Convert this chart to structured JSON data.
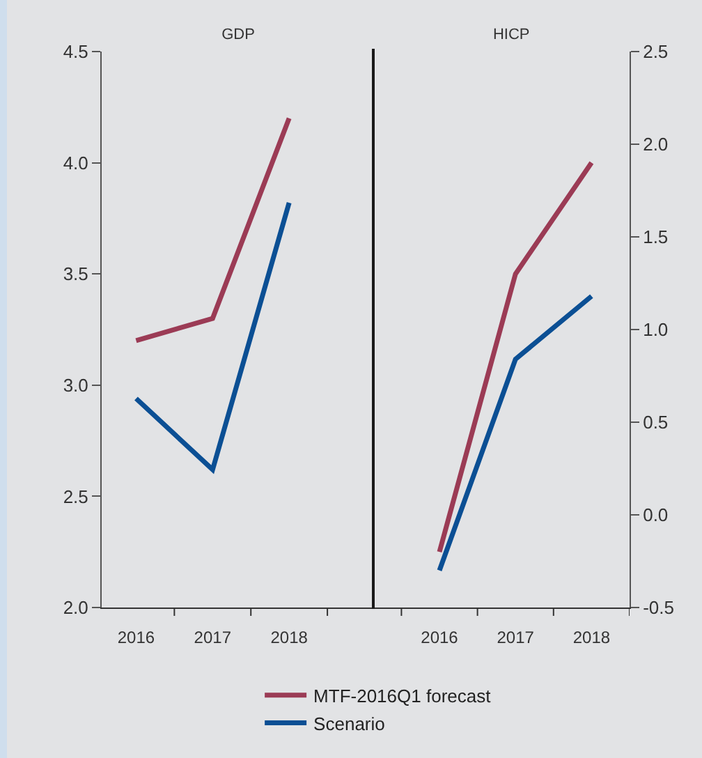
{
  "chart_data": [
    {
      "type": "line",
      "title": "GDP",
      "categories": [
        "2016",
        "2017",
        "2018"
      ],
      "ylim": [
        2.0,
        4.5
      ],
      "yticks": [
        {
          "value": 2.0,
          "label": "2.0"
        },
        {
          "value": 2.5,
          "label": "2.5"
        },
        {
          "value": 3.0,
          "label": "3.0"
        },
        {
          "value": 3.5,
          "label": "3.5"
        },
        {
          "value": 4.0,
          "label": "4.0"
        },
        {
          "value": 4.5,
          "label": "4.5"
        }
      ],
      "legend": "bottom",
      "series": [
        {
          "name": "MTF-2016Q1 forecast",
          "color": "#9b3b55",
          "values": [
            3.2,
            3.3,
            4.2
          ]
        },
        {
          "name": "Scenario",
          "color": "#0b4f94",
          "values": [
            2.94,
            2.62,
            3.82
          ]
        }
      ]
    },
    {
      "type": "line",
      "title": "HICP",
      "categories": [
        "2016",
        "2017",
        "2018"
      ],
      "ylim": [
        -0.5,
        2.5
      ],
      "yticks": [
        {
          "value": -0.5,
          "label": "-0.5"
        },
        {
          "value": 0,
          "label": "0.0"
        },
        {
          "value": 0.5,
          "label": "0.5"
        },
        {
          "value": 1.0,
          "label": "1.0"
        },
        {
          "value": 1.5,
          "label": "1.5"
        },
        {
          "value": 2.0,
          "label": "2.0"
        },
        {
          "value": 2.5,
          "label": "2.5"
        }
      ],
      "series": [
        {
          "color": "#9b3b55",
          "values": [
            -0.2,
            1.3,
            1.9
          ]
        },
        {
          "color": "#0b4f94",
          "values": [
            -0.3,
            0.84,
            1.18
          ]
        }
      ]
    }
  ]
}
